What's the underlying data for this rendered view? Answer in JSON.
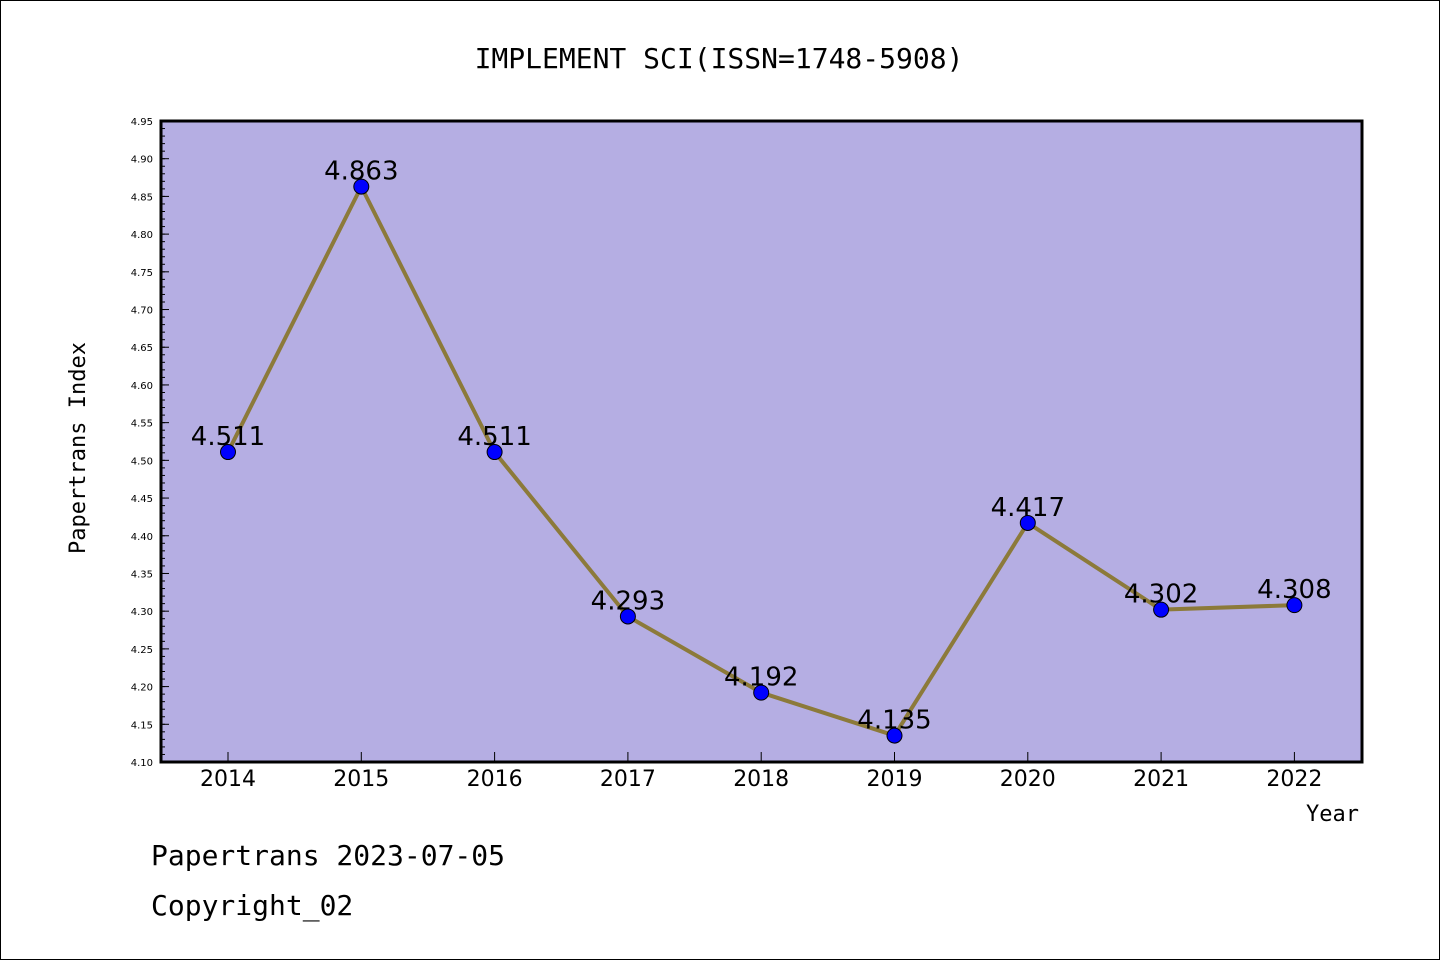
{
  "chart_data": {
    "type": "line",
    "title": "IMPLEMENT SCI(ISSN=1748-5908)",
    "xlabel": "Year",
    "ylabel": "Papertrans Index",
    "categories": [
      "2014",
      "2015",
      "2016",
      "2017",
      "2018",
      "2019",
      "2020",
      "2021",
      "2022"
    ],
    "values": [
      4.511,
      4.863,
      4.511,
      4.293,
      4.192,
      4.135,
      4.417,
      4.302,
      4.308
    ],
    "data_labels": [
      "4.511",
      "4.863",
      "4.511",
      "4.293",
      "4.192",
      "4.135",
      "4.417",
      "4.302",
      "4.308"
    ],
    "ylim": [
      4.1,
      4.95
    ],
    "yticks": [
      "4.10",
      "4.15",
      "4.20",
      "4.25",
      "4.30",
      "4.35",
      "4.40",
      "4.45",
      "4.50",
      "4.55",
      "4.60",
      "4.65",
      "4.70",
      "4.75",
      "4.80",
      "4.85",
      "4.90",
      "4.95"
    ],
    "grid": false,
    "legend": "none",
    "colors": {
      "plot_background": "#b5aee3",
      "line": "#8c7a3a",
      "marker": "#0000ff"
    }
  },
  "footer": {
    "line1": "Papertrans 2023-07-05",
    "line2": "Copyright_02"
  }
}
